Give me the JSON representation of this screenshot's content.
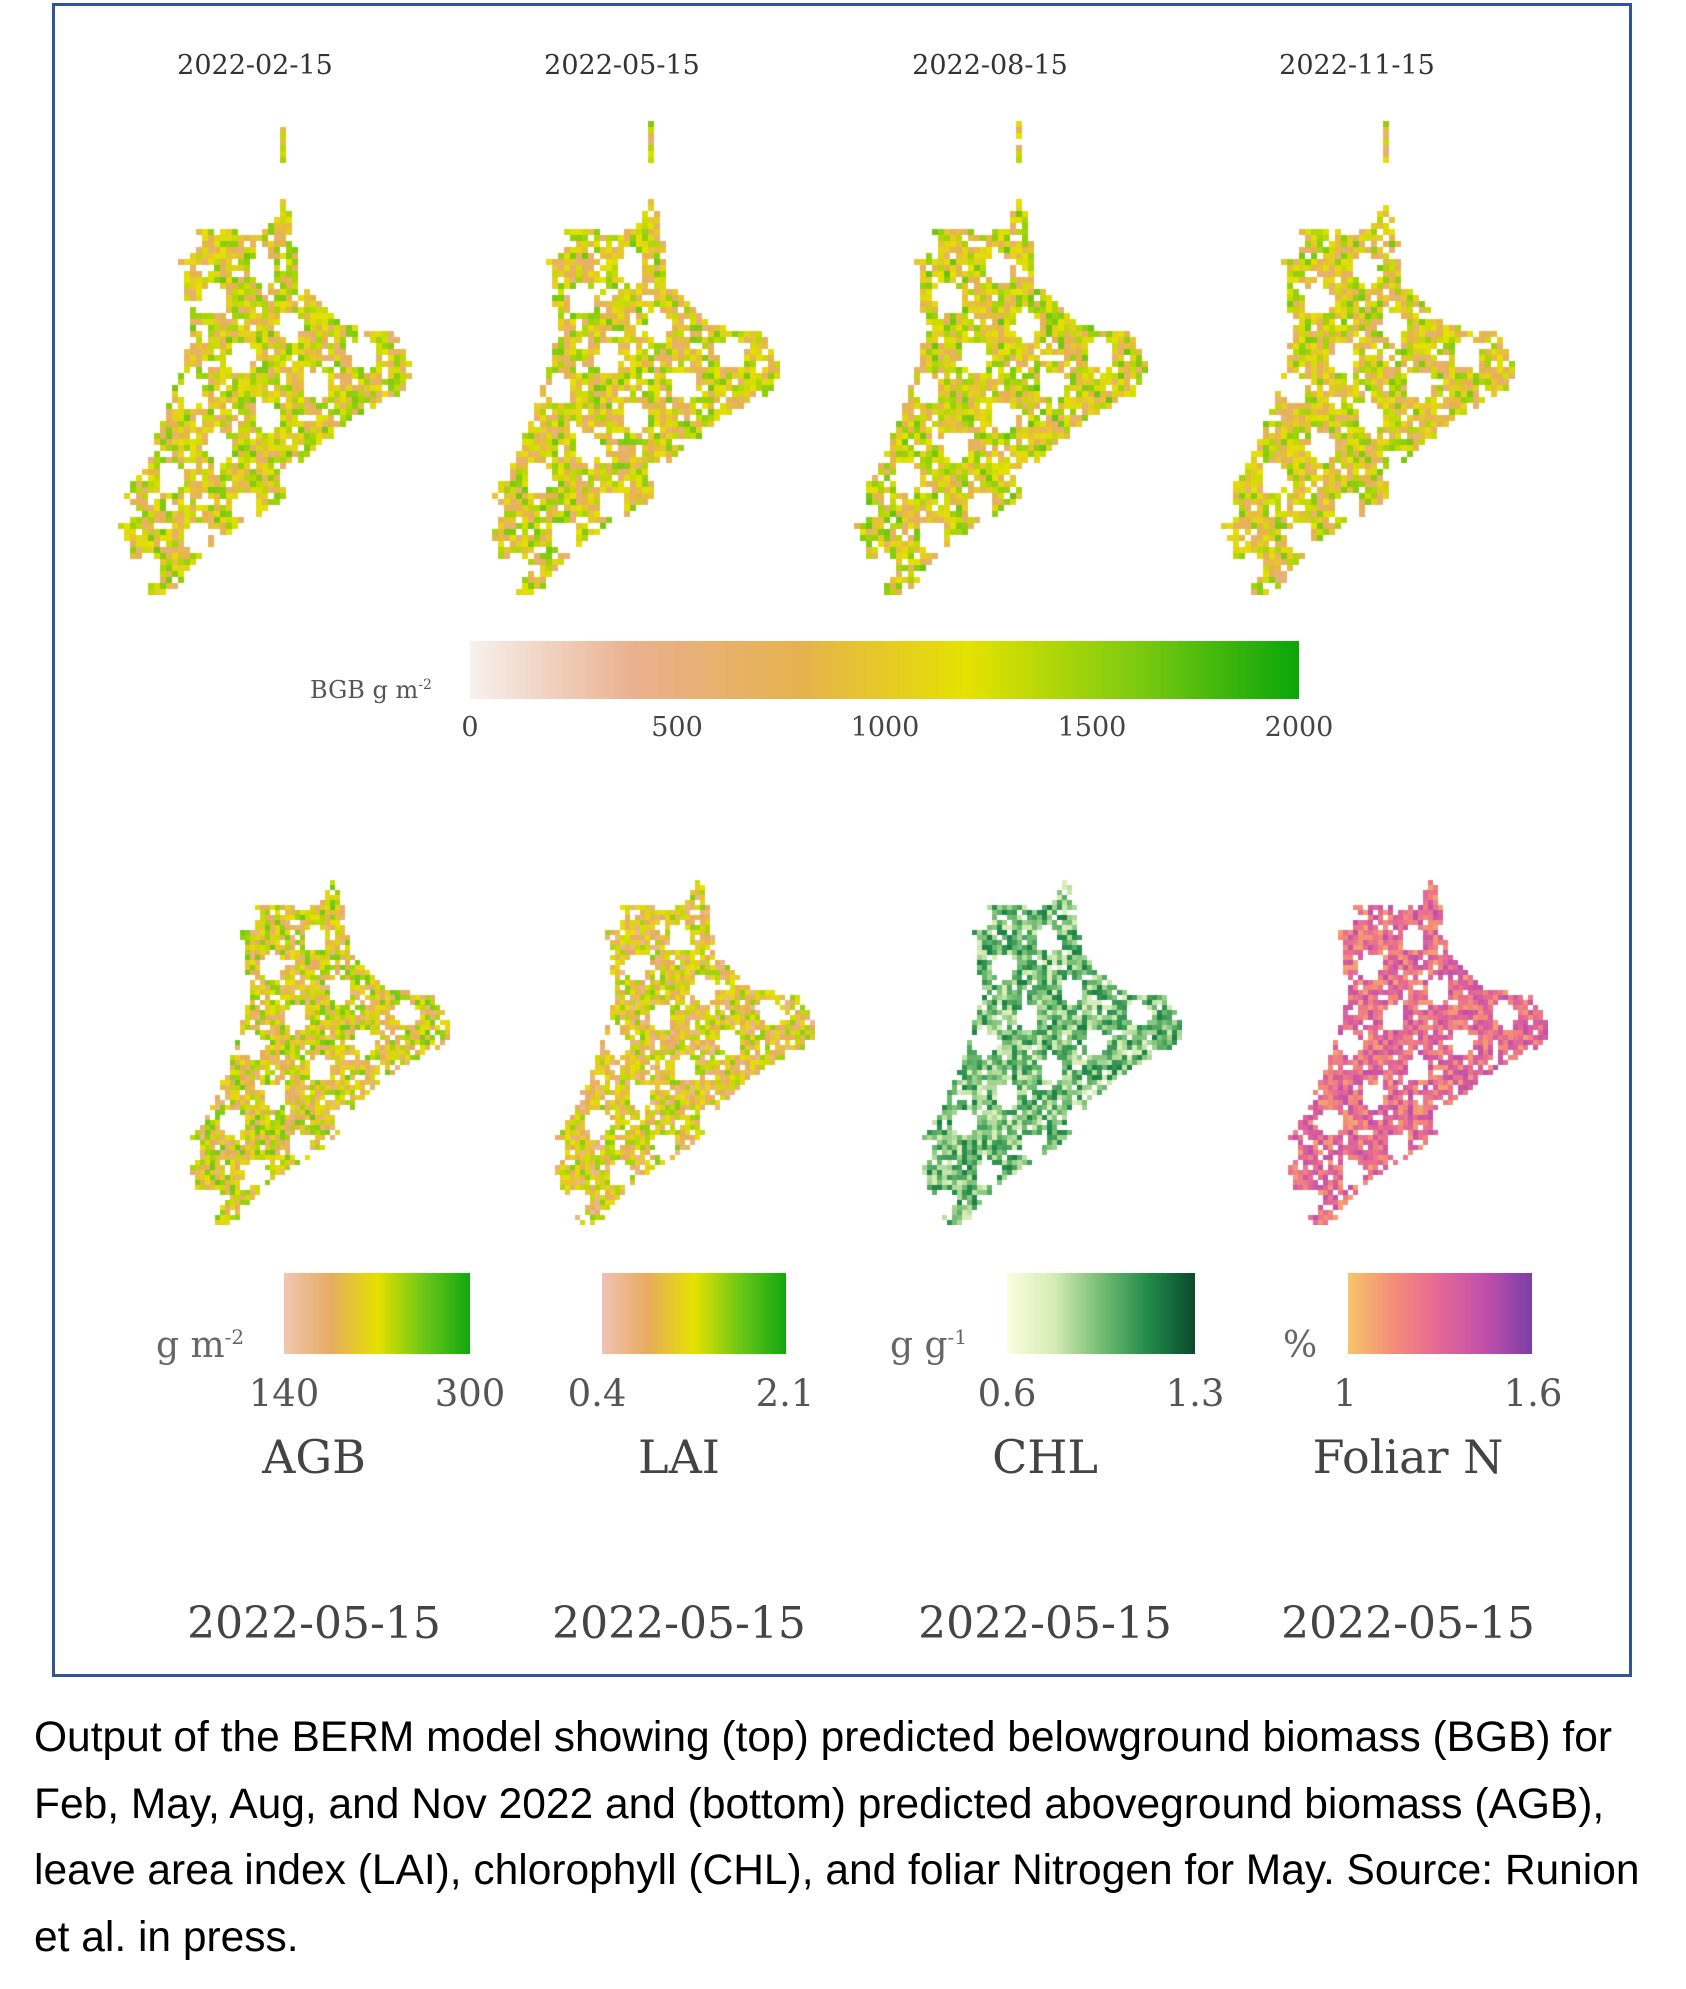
{
  "top_row": {
    "dates": [
      "2022-02-15",
      "2022-05-15",
      "2022-08-15",
      "2022-11-15"
    ],
    "colorbar": {
      "label": "BGB g m",
      "label_sup": "-2",
      "ticks": [
        "0",
        "500",
        "1000",
        "1500",
        "2000"
      ],
      "range": [
        0,
        2000
      ],
      "stops": [
        "#f7f1ef",
        "#eab08e",
        "#e6b24e",
        "#e5e200",
        "#7fcb10",
        "#0aa50a"
      ]
    }
  },
  "bottom_row": {
    "panels": [
      {
        "name": "AGB",
        "unit": "g m",
        "unit_sup": "-2",
        "min": "140",
        "max": "300",
        "date": "2022-05-15",
        "stops": [
          "#f0c7b2",
          "#e7ab62",
          "#e6e000",
          "#6cc816",
          "#12a612"
        ]
      },
      {
        "name": "LAI",
        "unit": "",
        "unit_sup": "",
        "min": "0.4",
        "max": "2.1",
        "date": "2022-05-15",
        "stops": [
          "#efc2b4",
          "#e8ab5e",
          "#e6e200",
          "#6cc816",
          "#12a612"
        ]
      },
      {
        "name": "CHL",
        "unit": "g g",
        "unit_sup": "-1",
        "min": "0.6",
        "max": "1.3",
        "date": "2022-05-15",
        "stops": [
          "#fbfde0",
          "#d5ecb5",
          "#75bd73",
          "#228a4a",
          "#0a4a2c"
        ]
      },
      {
        "name": "Foliar N",
        "unit": "%",
        "unit_sup": "",
        "min": "1",
        "max": "1.6",
        "date": "2022-05-15",
        "stops": [
          "#f6c56a",
          "#f48c78",
          "#e46796",
          "#c04fab",
          "#7a3fa8"
        ]
      }
    ]
  },
  "caption": "Output of the BERM model showing (top) predicted belowground biomass (BGB) for Feb, May, Aug, and Nov 2022 and (bottom) predicted aboveground biomass (AGB), leave area index (LAI), chlorophyll (CHL), and foliar Nitrogen for May. Source: Runion et al. in press.",
  "colors": {
    "frame": "#2f5597"
  }
}
